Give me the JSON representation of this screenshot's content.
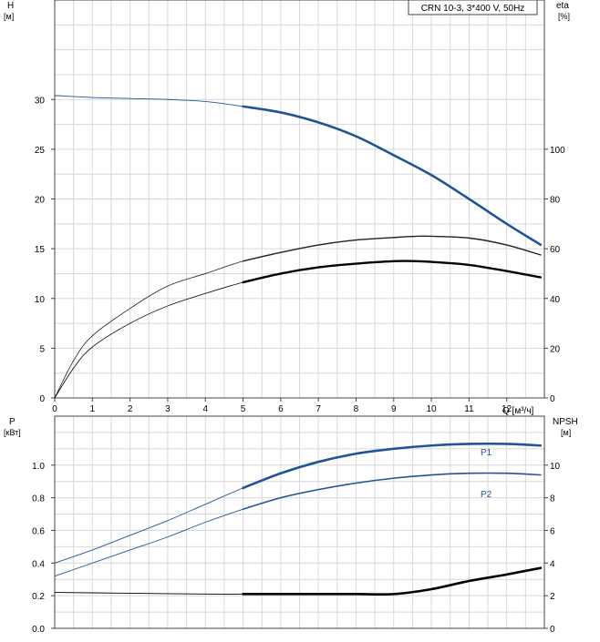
{
  "chart_data": [
    {
      "type": "line",
      "title": "CRN 10-3, 3*400 V, 50Hz",
      "x_unit_label": "Q [м³/ч]",
      "x_ticks": [
        0,
        1,
        2,
        3,
        4,
        5,
        6,
        7,
        8,
        9,
        10,
        11,
        12
      ],
      "xlim": [
        0,
        13
      ],
      "left_axis": {
        "label_line1": "H",
        "label_line2": "[м]",
        "ylim": [
          0,
          40
        ],
        "ticks": [
          0,
          5,
          10,
          15,
          20,
          25,
          30
        ]
      },
      "right_axis": {
        "label_line1": "eta",
        "label_line2": "[%]",
        "ylim": [
          0,
          160
        ],
        "ticks": [
          0,
          20,
          40,
          60,
          80,
          100
        ]
      },
      "grid": true,
      "series": [
        {
          "axis": "left",
          "role": "head",
          "color": "#1f5596",
          "x": [
            0,
            1,
            2,
            3,
            4,
            5,
            6,
            7,
            8,
            9,
            10,
            11,
            12,
            12.9
          ],
          "y": [
            30.4,
            30.2,
            30.1,
            30.0,
            29.8,
            29.3,
            28.7,
            27.7,
            26.3,
            24.4,
            22.4,
            20.0,
            17.5,
            15.4
          ]
        },
        {
          "axis": "right",
          "role": "upper-efficiency",
          "color": "#222222",
          "x": [
            0,
            0.5,
            1,
            2,
            3,
            4,
            5,
            6,
            7,
            8,
            9,
            9.6,
            10,
            11,
            12,
            12.9
          ],
          "y": [
            0,
            15,
            25,
            36,
            45,
            50,
            55,
            58.5,
            61.5,
            63.5,
            64.5,
            65,
            65,
            64.3,
            61.5,
            57.5
          ]
        },
        {
          "axis": "right",
          "role": "lower-efficiency",
          "color": "#000000",
          "x": [
            0,
            0.5,
            1,
            2,
            3,
            4,
            5,
            6,
            7,
            8,
            9,
            9.6,
            10,
            11,
            12,
            12.9
          ],
          "y": [
            0,
            12,
            20.5,
            30,
            37,
            42,
            46.5,
            50,
            52.5,
            54,
            55,
            55,
            54.7,
            53.5,
            51,
            48.5
          ]
        }
      ]
    },
    {
      "type": "line",
      "left_axis": {
        "label_line1": "P",
        "label_line2": "[кВт]",
        "ylim": [
          0,
          1.3
        ],
        "ticks": [
          "0.0",
          "0.2",
          "0.4",
          "0.6",
          "0.8",
          "1.0"
        ]
      },
      "right_axis": {
        "label_line1": "NPSH",
        "label_line2": "[м]",
        "ylim": [
          0,
          13
        ],
        "ticks": [
          0,
          2,
          4,
          6,
          8,
          10
        ]
      },
      "xlim": [
        0,
        13
      ],
      "grid": true,
      "series": [
        {
          "name": "P1",
          "axis": "left",
          "color": "#1f5596",
          "x": [
            0,
            1,
            2,
            3,
            4,
            5,
            6,
            7,
            8,
            9,
            10,
            11,
            12,
            12.9
          ],
          "y": [
            0.4,
            0.48,
            0.57,
            0.66,
            0.76,
            0.86,
            0.95,
            1.02,
            1.07,
            1.1,
            1.12,
            1.13,
            1.13,
            1.12
          ]
        },
        {
          "name": "P2",
          "axis": "left",
          "color": "#1f5596",
          "x": [
            0,
            1,
            2,
            3,
            4,
            5,
            6,
            7,
            8,
            9,
            10,
            11,
            12,
            12.9
          ],
          "y": [
            0.32,
            0.4,
            0.48,
            0.56,
            0.65,
            0.73,
            0.8,
            0.85,
            0.89,
            0.92,
            0.94,
            0.95,
            0.95,
            0.94
          ]
        },
        {
          "axis": "right",
          "role": "npsh",
          "color": "#000000",
          "x": [
            0,
            2,
            4,
            5,
            6,
            7,
            8,
            9,
            10,
            11,
            12,
            12.9
          ],
          "y": [
            2.2,
            2.15,
            2.1,
            2.1,
            2.1,
            2.1,
            2.1,
            2.1,
            2.4,
            2.9,
            3.3,
            3.7
          ]
        }
      ]
    }
  ]
}
